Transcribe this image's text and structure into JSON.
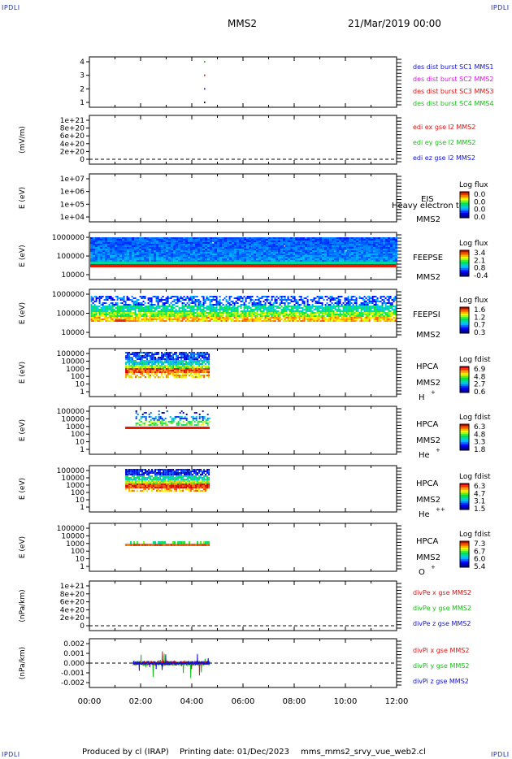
{
  "header": {
    "corner_left_top": "IPDLI",
    "corner_right_top": "IPDLI",
    "corner_left_bottom": "IPDLI",
    "corner_right_bottom": "IPDLI",
    "spacecraft": "MMS2",
    "datetime": "21/Mar/2019 00:00"
  },
  "footer": {
    "produced_by": "Produced by cl (IRAP)",
    "printing_date": "Printing date: 01/Dec/2023",
    "script": "mms_mms2_srvy_vue_web2.cl"
  },
  "colors": {
    "blue": "#1010d0",
    "magenta": "#e010e0",
    "red": "#e01010",
    "green": "#10c010"
  },
  "chart_data": {
    "type": "heatmap",
    "x_tick_labels": [
      "00:00",
      "02:00",
      "04:00",
      "06:00",
      "08:00",
      "10:00",
      "12:00"
    ],
    "xlim_hours": [
      0,
      12
    ],
    "panels": [
      {
        "id": "burst",
        "y_ticks": [
          "4",
          "3",
          "2",
          "1"
        ],
        "ylabel": "",
        "legend": [
          {
            "text": "des dist burst SC1 MMS1",
            "color": "#1010d0"
          },
          {
            "text": "des dist burst SC2 MMS2",
            "color": "#e010e0"
          },
          {
            "text": "des dist burst SC3 MMS3",
            "color": "#e01010"
          },
          {
            "text": "des dist burst SC4 MMS4",
            "color": "#10c010"
          }
        ],
        "points": [
          {
            "x": 4.5,
            "y": 4,
            "color": "#10c010"
          },
          {
            "x": 4.5,
            "y": 3,
            "color": "#e01010"
          },
          {
            "x": 4.5,
            "y": 2,
            "color": "#1010d0"
          },
          {
            "x": 4.5,
            "y": 1,
            "color": "#000000"
          }
        ]
      },
      {
        "id": "edi",
        "y_ticks": [
          "1e+21",
          "8e+20",
          "6e+20",
          "4e+20",
          "2e+20",
          "0"
        ],
        "ylabel": "(mV/m)",
        "legend": [
          {
            "text": "edi ex gse l2 MMS2",
            "color": "#e01010"
          },
          {
            "text": "edi ey gse l2 MMS2",
            "color": "#10c010"
          },
          {
            "text": "edi ez gse l2 MMS2",
            "color": "#1010d0"
          }
        ]
      },
      {
        "id": "eis",
        "y_ticks": [
          "1e+07",
          "1e+06",
          "1e+05",
          "1e+04"
        ],
        "ylabel": "E (eV)",
        "right_labels": [
          "EIS",
          "MMS2"
        ],
        "overlay_text": "Heavy electron to",
        "cbar_title": "Log flux",
        "cbar_ticks": [
          "0.0",
          "0.0",
          "0.0",
          "0.0"
        ]
      },
      {
        "id": "feepse",
        "y_ticks": [
          "1000000",
          "100000",
          "10000"
        ],
        "ylabel": "E (eV)",
        "right_labels": [
          "FEEPSE",
          "MMS2"
        ],
        "cbar_title": "Log flux",
        "cbar_ticks": [
          "3.4",
          "2.1",
          "0.8",
          "-0.4"
        ]
      },
      {
        "id": "feepsi",
        "y_ticks": [
          "1000000",
          "100000",
          "10000"
        ],
        "ylabel": "E (eV)",
        "right_labels": [
          "FEEPSI",
          "MMS2"
        ],
        "cbar_title": "Log flux",
        "cbar_ticks": [
          "1.6",
          "1.2",
          "0.7",
          "0.3"
        ]
      },
      {
        "id": "hpca_h",
        "y_ticks": [
          "100000",
          "10000",
          "1000",
          "100",
          "10",
          "1"
        ],
        "ylabel": "E (eV)",
        "right_labels": [
          "HPCA",
          "MMS2"
        ],
        "species": "H",
        "species_sup": "+",
        "cbar_title": "Log fdist",
        "cbar_ticks": [
          "6.9",
          "4.8",
          "2.7",
          "0.6"
        ]
      },
      {
        "id": "hpca_he",
        "y_ticks": [
          "100000",
          "10000",
          "1000",
          "100",
          "10",
          "1"
        ],
        "ylabel": "E (eV)",
        "right_labels": [
          "HPCA",
          "MMS2"
        ],
        "species": "He",
        "species_sup": "+",
        "cbar_title": "Log fdist",
        "cbar_ticks": [
          "6.3",
          "4.8",
          "3.3",
          "1.8"
        ]
      },
      {
        "id": "hpca_hepp",
        "y_ticks": [
          "100000",
          "10000",
          "1000",
          "100",
          "10",
          "1"
        ],
        "ylabel": "E (eV)",
        "right_labels": [
          "HPCA",
          "MMS2"
        ],
        "species": "He",
        "species_sup": "++",
        "cbar_title": "Log fdist",
        "cbar_ticks": [
          "6.3",
          "4.7",
          "3.1",
          "1.5"
        ]
      },
      {
        "id": "hpca_o",
        "y_ticks": [
          "100000",
          "10000",
          "1000",
          "100",
          "10",
          "1"
        ],
        "ylabel": "E (eV)",
        "right_labels": [
          "HPCA",
          "MMS2"
        ],
        "species": "O",
        "species_sup": "+",
        "cbar_title": "Log fdist",
        "cbar_ticks": [
          "7.3",
          "6.7",
          "6.0",
          "5.4"
        ]
      },
      {
        "id": "divpe",
        "y_ticks": [
          "1e+21",
          "8e+20",
          "6e+20",
          "4e+20",
          "2e+20",
          "0"
        ],
        "ylabel": "(nPa/km)",
        "legend": [
          {
            "text": "divPe x gse MMS2",
            "color": "#e01010"
          },
          {
            "text": "divPe y gse MMS2",
            "color": "#10c010"
          },
          {
            "text": "divPe z gse MMS2",
            "color": "#1010d0"
          }
        ]
      },
      {
        "id": "divpi",
        "y_ticks": [
          "0.002",
          "0.001",
          "0.000",
          "-0.001",
          "-0.002"
        ],
        "ylabel": "(nPa/km)",
        "legend": [
          {
            "text": "divPi x gse MMS2",
            "color": "#e01010"
          },
          {
            "text": "divPi y gse MMS2",
            "color": "#10c010"
          },
          {
            "text": "divPi z gse MMS2",
            "color": "#1010d0"
          }
        ]
      }
    ]
  }
}
